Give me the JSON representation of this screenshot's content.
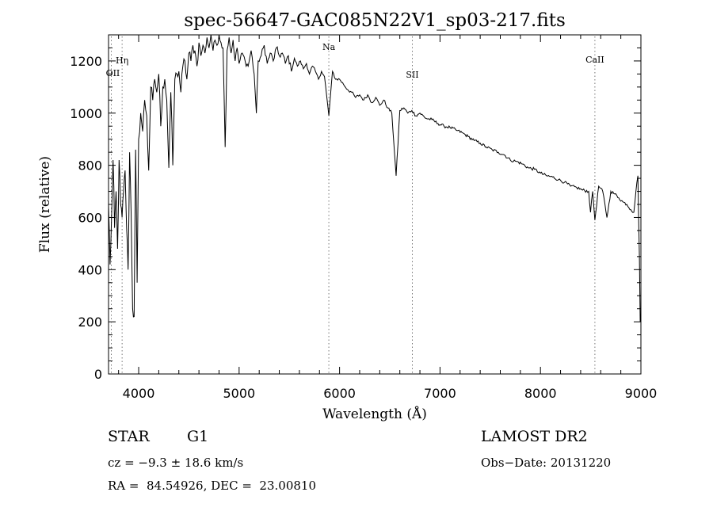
{
  "chart_data": {
    "type": "line",
    "title": "spec-56647-GAC085N22V1_sp03-217.fits",
    "xlabel": "Wavelength (Å)",
    "ylabel": "Flux (relative)",
    "xlim": [
      3700,
      9000
    ],
    "ylim": [
      0,
      1300
    ],
    "xticks": [
      4000,
      5000,
      6000,
      7000,
      8000,
      9000
    ],
    "yticks": [
      0,
      200,
      400,
      600,
      800,
      1000,
      1200
    ],
    "grid": false,
    "line_color": "#000000",
    "series": [
      {
        "name": "flux",
        "x": [
          3700,
          3715,
          3730,
          3745,
          3760,
          3775,
          3790,
          3805,
          3820,
          3835,
          3850,
          3865,
          3880,
          3895,
          3910,
          3925,
          3940,
          3955,
          3970,
          3985,
          4000,
          4020,
          4040,
          4060,
          4080,
          4100,
          4120,
          4140,
          4160,
          4180,
          4200,
          4220,
          4240,
          4260,
          4280,
          4300,
          4320,
          4340,
          4360,
          4380,
          4400,
          4420,
          4440,
          4460,
          4480,
          4500,
          4520,
          4540,
          4560,
          4580,
          4600,
          4620,
          4640,
          4660,
          4680,
          4700,
          4720,
          4740,
          4760,
          4780,
          4800,
          4820,
          4840,
          4861,
          4880,
          4900,
          4920,
          4940,
          4960,
          4980,
          5000,
          5030,
          5060,
          5090,
          5120,
          5150,
          5172,
          5190,
          5220,
          5250,
          5280,
          5310,
          5340,
          5370,
          5400,
          5430,
          5460,
          5490,
          5520,
          5550,
          5580,
          5610,
          5640,
          5670,
          5700,
          5730,
          5760,
          5790,
          5820,
          5850,
          5893,
          5930,
          5960,
          6000,
          6040,
          6080,
          6120,
          6160,
          6200,
          6240,
          6280,
          6320,
          6360,
          6400,
          6440,
          6480,
          6520,
          6563,
          6600,
          6640,
          6680,
          6720,
          6760,
          6800,
          6860,
          6920,
          6980,
          7040,
          7100,
          7160,
          7220,
          7280,
          7340,
          7400,
          7460,
          7520,
          7580,
          7640,
          7700,
          7760,
          7820,
          7880,
          7940,
          8000,
          8060,
          8120,
          8180,
          8240,
          8300,
          8360,
          8420,
          8480,
          8498,
          8520,
          8542,
          8580,
          8620,
          8662,
          8700,
          8740,
          8780,
          8820,
          8860,
          8900,
          8930,
          8950,
          8970,
          8985,
          8993,
          9000
        ],
        "y": [
          650,
          420,
          600,
          820,
          560,
          700,
          480,
          820,
          650,
          600,
          700,
          780,
          560,
          400,
          850,
          620,
          250,
          220,
          860,
          350,
          900,
          1000,
          930,
          1050,
          990,
          780,
          1100,
          1050,
          1130,
          1080,
          1150,
          950,
          1100,
          1130,
          1050,
          790,
          1080,
          800,
          1130,
          1150,
          1160,
          1080,
          1180,
          1200,
          1130,
          1230,
          1200,
          1260,
          1240,
          1180,
          1270,
          1220,
          1260,
          1230,
          1290,
          1250,
          1300,
          1240,
          1280,
          1260,
          1300,
          1270,
          1250,
          870,
          1240,
          1290,
          1230,
          1280,
          1200,
          1250,
          1190,
          1230,
          1200,
          1180,
          1240,
          1150,
          1000,
          1200,
          1220,
          1260,
          1190,
          1230,
          1200,
          1250,
          1220,
          1230,
          1190,
          1220,
          1160,
          1210,
          1180,
          1200,
          1170,
          1190,
          1150,
          1180,
          1160,
          1130,
          1160,
          1140,
          990,
          1160,
          1130,
          1130,
          1110,
          1090,
          1080,
          1060,
          1070,
          1050,
          1070,
          1040,
          1060,
          1030,
          1050,
          1020,
          1000,
          760,
          1010,
          1020,
          1000,
          1010,
          990,
          1000,
          980,
          975,
          960,
          950,
          945,
          935,
          925,
          910,
          895,
          885,
          870,
          860,
          850,
          840,
          820,
          815,
          805,
          790,
          785,
          770,
          760,
          755,
          745,
          735,
          720,
          715,
          705,
          700,
          620,
          700,
          590,
          720,
          700,
          600,
          700,
          690,
          675,
          660,
          650,
          630,
          620,
          700,
          760,
          450,
          200,
          230
        ]
      }
    ],
    "lines": [
      {
        "x": 3835,
        "label": "Hη"
      },
      {
        "x": 3727,
        "label": "OII"
      },
      {
        "x": 5893,
        "label": "Na"
      },
      {
        "x": 6725,
        "label": "SII"
      },
      {
        "x": 8542,
        "label": "CaII"
      }
    ]
  },
  "info": {
    "obj_class": "STAR",
    "subclass": "G1",
    "survey": "LAMOST DR2",
    "cz": "cz = −9.3 ± 18.6 km/s",
    "obs_date": "Obs−Date: 20131220",
    "radec": "RA =  84.54926, DEC =  23.00810"
  }
}
